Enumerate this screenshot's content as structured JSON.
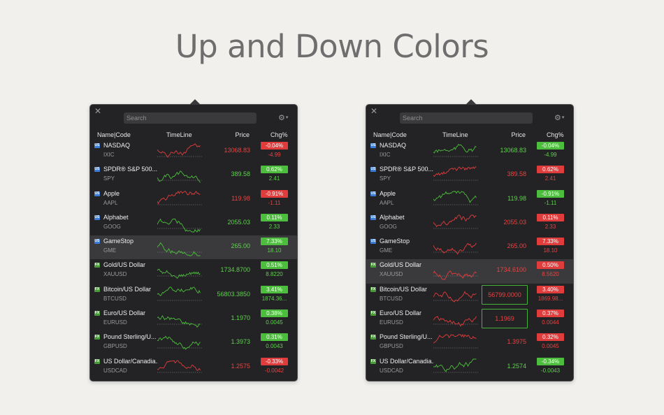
{
  "headline": "Up and Down Colors",
  "colors": {
    "up": "#4cbd3c",
    "down": "#e03c3c",
    "us_badge": "#3a7bd5",
    "fx_badge": "#4a9a3a"
  },
  "panels": [
    {
      "search_placeholder": "Search",
      "headers": {
        "name": "Name|Code",
        "timeline": "TimeLine",
        "price": "Price",
        "chg": "Chg%"
      },
      "rows": [
        {
          "badge": "US",
          "name": "NASDAQ",
          "code": "IXIC",
          "price": "13068.83",
          "pct": "-0.04%",
          "chg": "-4.99",
          "dir": "dn"
        },
        {
          "badge": "US",
          "name": "SPDR® S&P 500...",
          "code": "SPY",
          "price": "389.58",
          "pct": "0.62%",
          "chg": "2.41",
          "dir": "up"
        },
        {
          "badge": "US",
          "name": "Apple",
          "code": "AAPL",
          "price": "119.98",
          "pct": "-0.91%",
          "chg": "-1.11",
          "dir": "dn"
        },
        {
          "badge": "US",
          "name": "Alphabet",
          "code": "GOOG",
          "price": "2055.03",
          "pct": "0.11%",
          "chg": "2.33",
          "dir": "up"
        },
        {
          "badge": "US",
          "name": "GameStop",
          "code": "GME",
          "price": "265.00",
          "pct": "7.33%",
          "chg": "18.10",
          "dir": "up"
        },
        {
          "badge": "FX",
          "name": "Gold/US Dollar",
          "code": "XAUUSD",
          "price": "1734.8700",
          "pct": "0.51%",
          "chg": "8.8220",
          "dir": "up"
        },
        {
          "badge": "FX",
          "name": "Bitcoin/US Dollar",
          "code": "BTCUSD",
          "price": "56803.3850",
          "pct": "3.41%",
          "chg": "1874.36...",
          "dir": "up"
        },
        {
          "badge": "FX",
          "name": "Euro/US Dollar",
          "code": "EURUSD",
          "price": "1.1970",
          "pct": "0.38%",
          "chg": "0.0045",
          "dir": "up"
        },
        {
          "badge": "FX",
          "name": "Pound Sterling/U...",
          "code": "GBPUSD",
          "price": "1.3973",
          "pct": "0.31%",
          "chg": "0.0043",
          "dir": "up"
        },
        {
          "badge": "FX",
          "name": "US Dollar/Canadia...",
          "code": "USDCAD",
          "price": "1.2575",
          "pct": "-0.33%",
          "chg": "-0.0042",
          "dir": "dn"
        }
      ]
    },
    {
      "search_placeholder": "Search",
      "headers": {
        "name": "Name|Code",
        "timeline": "TimeLine",
        "price": "Price",
        "chg": "Chg%"
      },
      "rows": [
        {
          "badge": "US",
          "name": "NASDAQ",
          "code": "IXIC",
          "price": "13068.83",
          "pct": "-0.04%",
          "chg": "-4.99",
          "dir": "up"
        },
        {
          "badge": "US",
          "name": "SPDR® S&P 500...",
          "code": "SPY",
          "price": "389.58",
          "pct": "0.62%",
          "chg": "2.41",
          "dir": "dn"
        },
        {
          "badge": "US",
          "name": "Apple",
          "code": "AAPL",
          "price": "119.98",
          "pct": "-0.91%",
          "chg": "-1.11",
          "dir": "up"
        },
        {
          "badge": "US",
          "name": "Alphabet",
          "code": "GOOG",
          "price": "2055.03",
          "pct": "0.11%",
          "chg": "2.33",
          "dir": "dn"
        },
        {
          "badge": "US",
          "name": "GameStop",
          "code": "GME",
          "price": "265.00",
          "pct": "7.33%",
          "chg": "18.10",
          "dir": "dn"
        },
        {
          "badge": "FX",
          "name": "Gold/US Dollar",
          "code": "XAUUSD",
          "price": "1734.6100",
          "pct": "0.50%",
          "chg": "8.5620",
          "dir": "dn"
        },
        {
          "badge": "FX",
          "name": "Bitcoin/US Dollar",
          "code": "BTCUSD",
          "price": "56799.0000",
          "pct": "3.40%",
          "chg": "1869.98...",
          "dir": "dn"
        },
        {
          "badge": "FX",
          "name": "Euro/US Dollar",
          "code": "EURUSD",
          "price": "1.1969",
          "pct": "0.37%",
          "chg": "0.0044",
          "dir": "dn"
        },
        {
          "badge": "FX",
          "name": "Pound Sterling/U...",
          "code": "GBPUSD",
          "price": "1.3975",
          "pct": "0.32%",
          "chg": "0.0045",
          "dir": "dn"
        },
        {
          "badge": "FX",
          "name": "US Dollar/Canadia...",
          "code": "USDCAD",
          "price": "1.2574",
          "pct": "-0.34%",
          "chg": "-0.0043",
          "dir": "up"
        }
      ]
    }
  ]
}
